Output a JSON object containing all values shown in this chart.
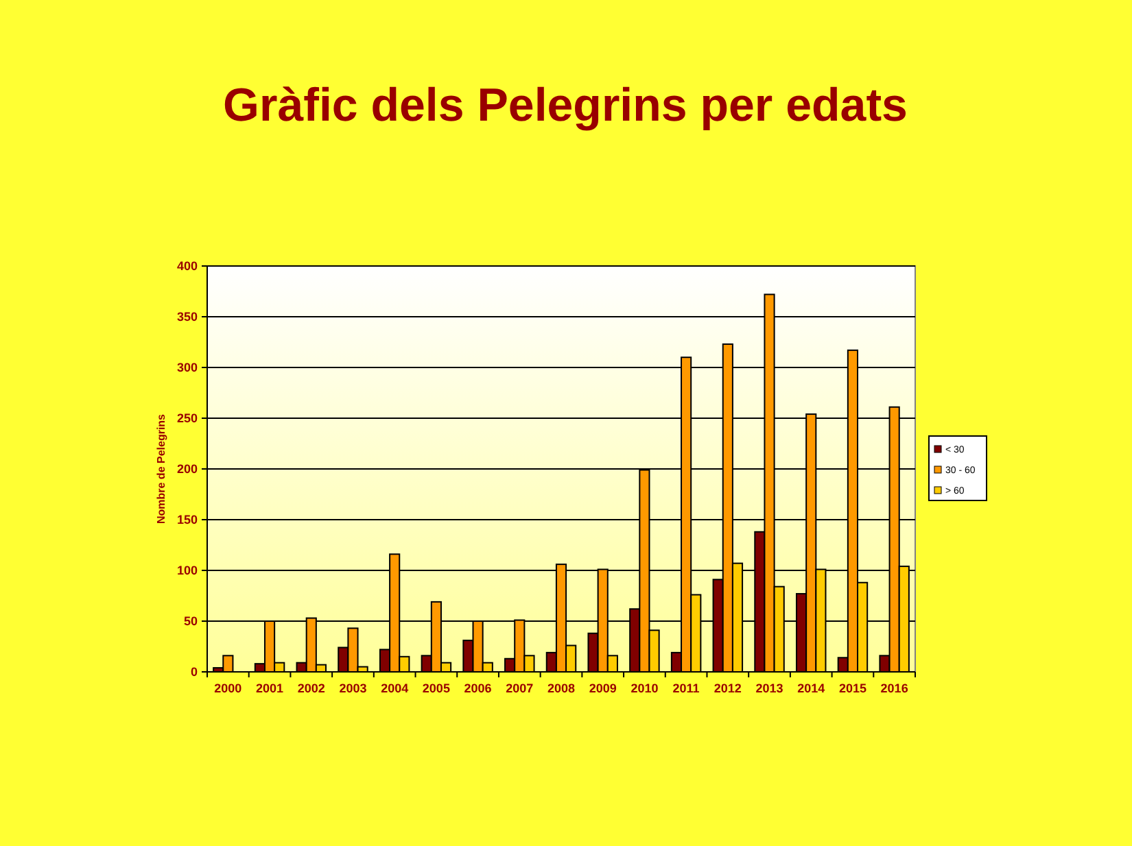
{
  "chart_data": {
    "type": "bar",
    "title": "Gràfic dels Pelegrins per edats",
    "ylabel": "Nombre de Pelegrins",
    "categories": [
      "2000",
      "2001",
      "2002",
      "2003",
      "2004",
      "2005",
      "2006",
      "2007",
      "2008",
      "2009",
      "2010",
      "2011",
      "2012",
      "2013",
      "2014",
      "2015",
      "2016"
    ],
    "series": [
      {
        "name": "< 30",
        "color": "#800000",
        "values": [
          4,
          8,
          9,
          24,
          22,
          16,
          31,
          13,
          19,
          38,
          62,
          19,
          91,
          138,
          77,
          14,
          16
        ]
      },
      {
        "name": "30 - 60",
        "color": "#ff9900",
        "values": [
          16,
          50,
          53,
          43,
          116,
          69,
          50,
          51,
          106,
          101,
          199,
          310,
          323,
          372,
          254,
          317,
          261
        ]
      },
      {
        "name": "> 60",
        "color": "#ffcc00",
        "values": [
          0,
          9,
          7,
          5,
          15,
          9,
          9,
          16,
          26,
          16,
          41,
          76,
          107,
          84,
          101,
          88,
          104
        ]
      }
    ],
    "ylim": [
      0,
      400
    ],
    "yticks": [
      0,
      50,
      100,
      150,
      200,
      250,
      300,
      350,
      400
    ],
    "grid": "y",
    "legend": "right"
  }
}
